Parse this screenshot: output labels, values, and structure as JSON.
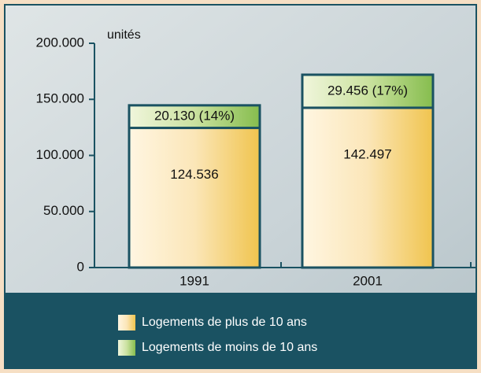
{
  "chart_data": {
    "type": "stacked-bar",
    "y_label": "unités",
    "categories": [
      "1991",
      "2001"
    ],
    "series": [
      {
        "name": "Logements de plus de 10 ans",
        "color": "#f5c85a",
        "values": [
          124536,
          142497
        ],
        "value_labels": [
          "124.536",
          "142.497"
        ]
      },
      {
        "name": "Logements de moins de 10 ans",
        "color": "#8cc152",
        "values": [
          20130,
          29456
        ],
        "value_labels": [
          "20.130 (14%)",
          "29.456 (17%)"
        ]
      }
    ],
    "ylim": [
      0,
      200000
    ],
    "yticks": [
      0,
      {
        "value": 50000,
        "label": "50.000"
      },
      {
        "value": 100000,
        "label": "100.000"
      },
      {
        "value": 150000,
        "label": "150.000"
      },
      {
        "value": 200000,
        "label": "200.000"
      }
    ]
  }
}
